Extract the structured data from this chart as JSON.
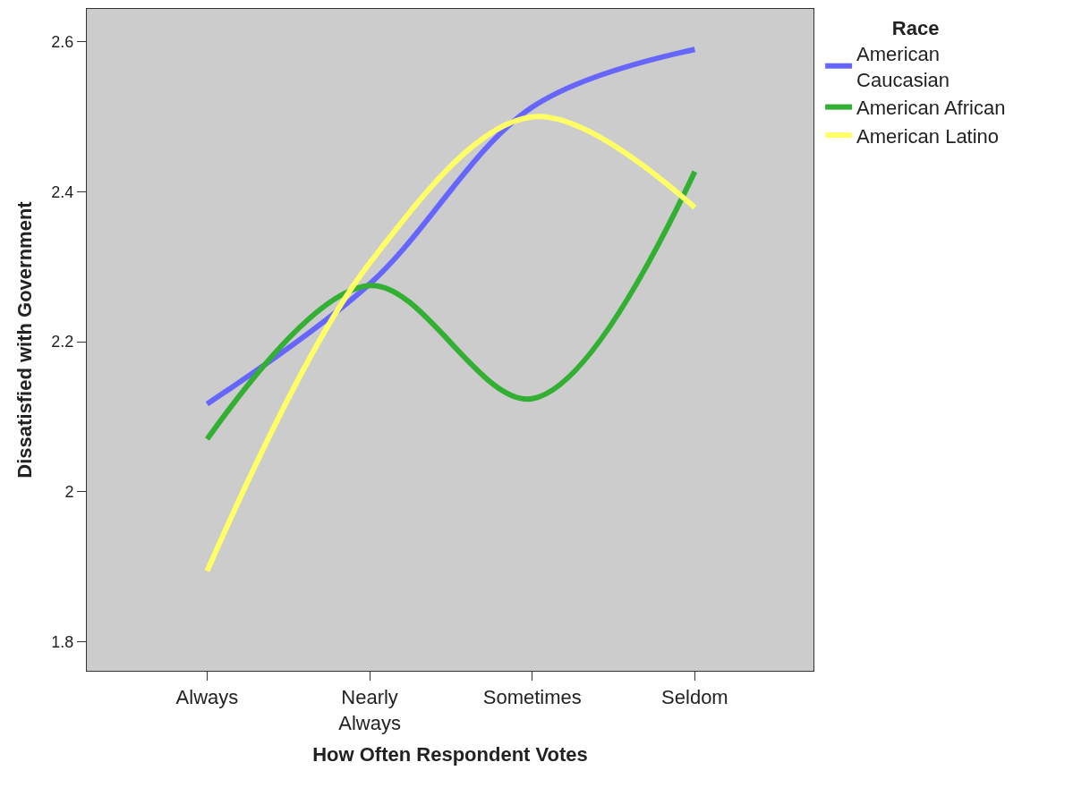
{
  "chart_data": {
    "type": "line",
    "xlabel": "How Often Respondent Votes",
    "ylabel": "Dissatisfied with Government",
    "legend_title": "Race",
    "categories": [
      "Always",
      "Nearly Always",
      "Sometimes",
      "Seldom"
    ],
    "series": [
      {
        "name": "American Caucasian",
        "color": "#6666ff",
        "values": [
          2.117,
          2.277,
          2.513,
          2.59
        ]
      },
      {
        "name": "American African",
        "color": "#33b033",
        "values": [
          2.07,
          2.275,
          2.124,
          2.427
        ]
      },
      {
        "name": "American Latino",
        "color": "#ffff66",
        "values": [
          1.894,
          2.305,
          2.5,
          2.379
        ]
      }
    ],
    "ylim": [
      1.761,
      2.644
    ],
    "yticks": [
      {
        "value": 1.8,
        "label": "1.8"
      },
      {
        "value": 2.0,
        "label": "2"
      },
      {
        "value": 2.2,
        "label": "2.2"
      },
      {
        "value": 2.4,
        "label": "2.4"
      },
      {
        "value": 2.6,
        "label": "2.6"
      }
    ],
    "grid": false,
    "legend": "top right",
    "marker": "none",
    "line_style": "solid"
  }
}
